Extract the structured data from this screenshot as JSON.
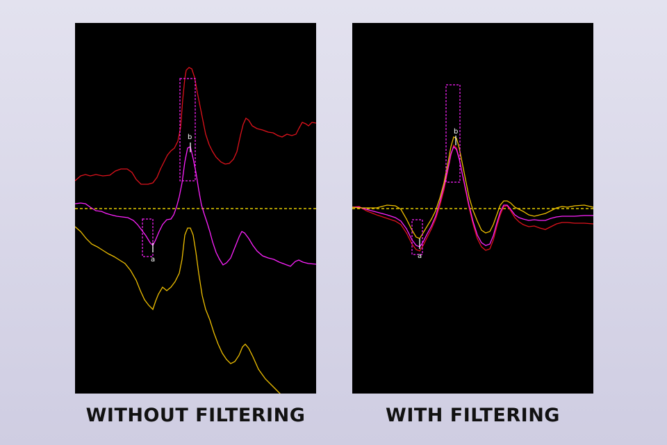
{
  "colors": {
    "trace_red": "#e0121c",
    "trace_magenta": "#ff22ff",
    "trace_yellow": "#f0c000",
    "baseline": "#e8d000",
    "window_box": "#ff22ff",
    "marker": "#ffffff",
    "panel_background": "#000000"
  },
  "panels": {
    "left": {
      "caption": "WITHOUT FILTERING",
      "marker_a": "a",
      "marker_b": "b"
    },
    "right": {
      "caption": "WITH FILTERING",
      "marker_a": "a",
      "marker_b": "b"
    }
  }
}
